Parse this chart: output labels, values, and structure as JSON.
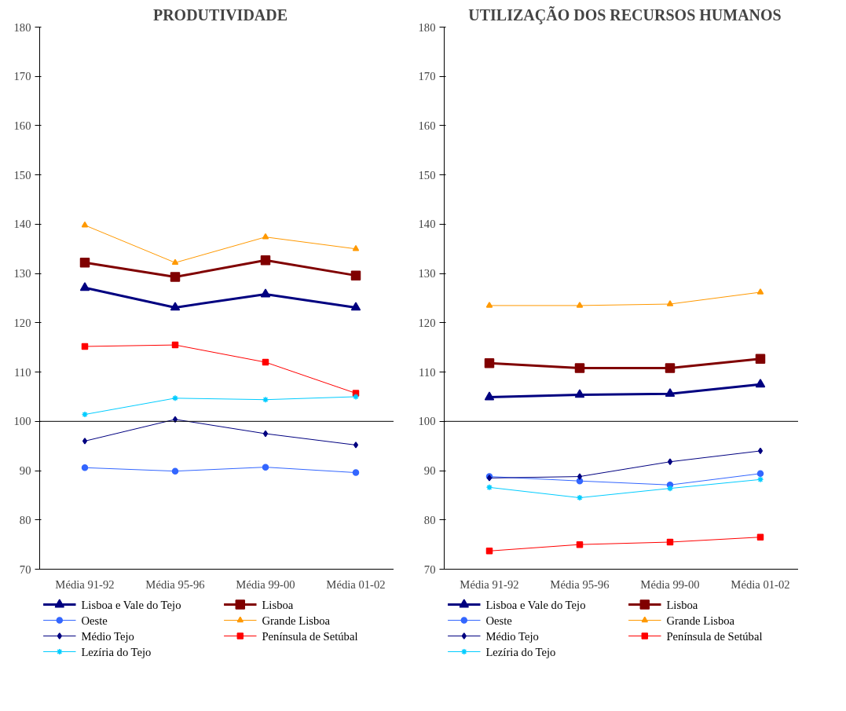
{
  "chart_data": [
    {
      "type": "line",
      "title": "PRODUTIVIDADE",
      "categories": [
        "Média 91-92",
        "Média 95-96",
        "Média 99-00",
        "Média 01-02"
      ],
      "ylim": [
        70,
        180
      ],
      "yticks": [
        70,
        80,
        90,
        100,
        110,
        120,
        130,
        140,
        150,
        160,
        170,
        180
      ],
      "grid": false,
      "legend": "bottom",
      "ref_lines": [
        {
          "axis": "y",
          "value": 100,
          "color": "#000000"
        }
      ],
      "series": [
        {
          "name": "Lisboa e Vale do Tejo",
          "color": "#000080",
          "marker": "triangle",
          "values": [
            127.1,
            123.1,
            125.8,
            123.1
          ]
        },
        {
          "name": "Lisboa",
          "color": "#800000",
          "marker": "square",
          "values": [
            132.2,
            129.3,
            132.7,
            129.6
          ]
        },
        {
          "name": "Oeste",
          "color": "#3366ff",
          "marker": "circle",
          "values": [
            90.6,
            89.9,
            90.7,
            89.6
          ]
        },
        {
          "name": "Grande Lisboa",
          "color": "#ff9900",
          "marker": "triangle",
          "values": [
            139.8,
            132.2,
            137.4,
            135.0
          ]
        },
        {
          "name": "Médio Tejo",
          "color": "#000080",
          "marker": "diamond",
          "values": [
            96.0,
            100.4,
            97.5,
            95.2
          ]
        },
        {
          "name": "Península de Setúbal",
          "color": "#ff0000",
          "marker": "square",
          "values": [
            115.2,
            115.5,
            112.0,
            105.7
          ]
        },
        {
          "name": "Lezíria do Tejo",
          "color": "#00ccff",
          "marker": "cross",
          "values": [
            101.4,
            104.7,
            104.4,
            105.0
          ]
        }
      ]
    },
    {
      "type": "line",
      "title": "UTILIZAÇÃO DOS RECURSOS HUMANOS",
      "categories": [
        "Média 91-92",
        "Média 95-96",
        "Média 99-00",
        "Média 01-02"
      ],
      "ylim": [
        70,
        180
      ],
      "yticks": [
        70,
        80,
        90,
        100,
        110,
        120,
        130,
        140,
        150,
        160,
        170,
        180
      ],
      "grid": false,
      "legend": "bottom",
      "ref_lines": [
        {
          "axis": "y",
          "value": 100,
          "color": "#000000"
        }
      ],
      "series": [
        {
          "name": "Lisboa e Vale do Tejo",
          "color": "#000080",
          "marker": "triangle",
          "values": [
            104.9,
            105.4,
            105.6,
            107.5
          ]
        },
        {
          "name": "Lisboa",
          "color": "#800000",
          "marker": "square",
          "values": [
            111.8,
            110.8,
            110.8,
            112.7
          ]
        },
        {
          "name": "Oeste",
          "color": "#3366ff",
          "marker": "circle",
          "values": [
            88.8,
            87.9,
            87.1,
            89.4
          ]
        },
        {
          "name": "Grande Lisboa",
          "color": "#ff9900",
          "marker": "triangle",
          "values": [
            123.5,
            123.5,
            123.8,
            126.2
          ]
        },
        {
          "name": "Médio Tejo",
          "color": "#000080",
          "marker": "diamond",
          "values": [
            88.5,
            88.8,
            91.8,
            94.0
          ]
        },
        {
          "name": "Península de Setúbal",
          "color": "#ff0000",
          "marker": "square",
          "values": [
            73.7,
            75.0,
            75.5,
            76.5
          ]
        },
        {
          "name": "Lezíria do Tejo",
          "color": "#00ccff",
          "marker": "cross",
          "values": [
            86.6,
            84.5,
            86.4,
            88.2
          ]
        }
      ]
    }
  ]
}
